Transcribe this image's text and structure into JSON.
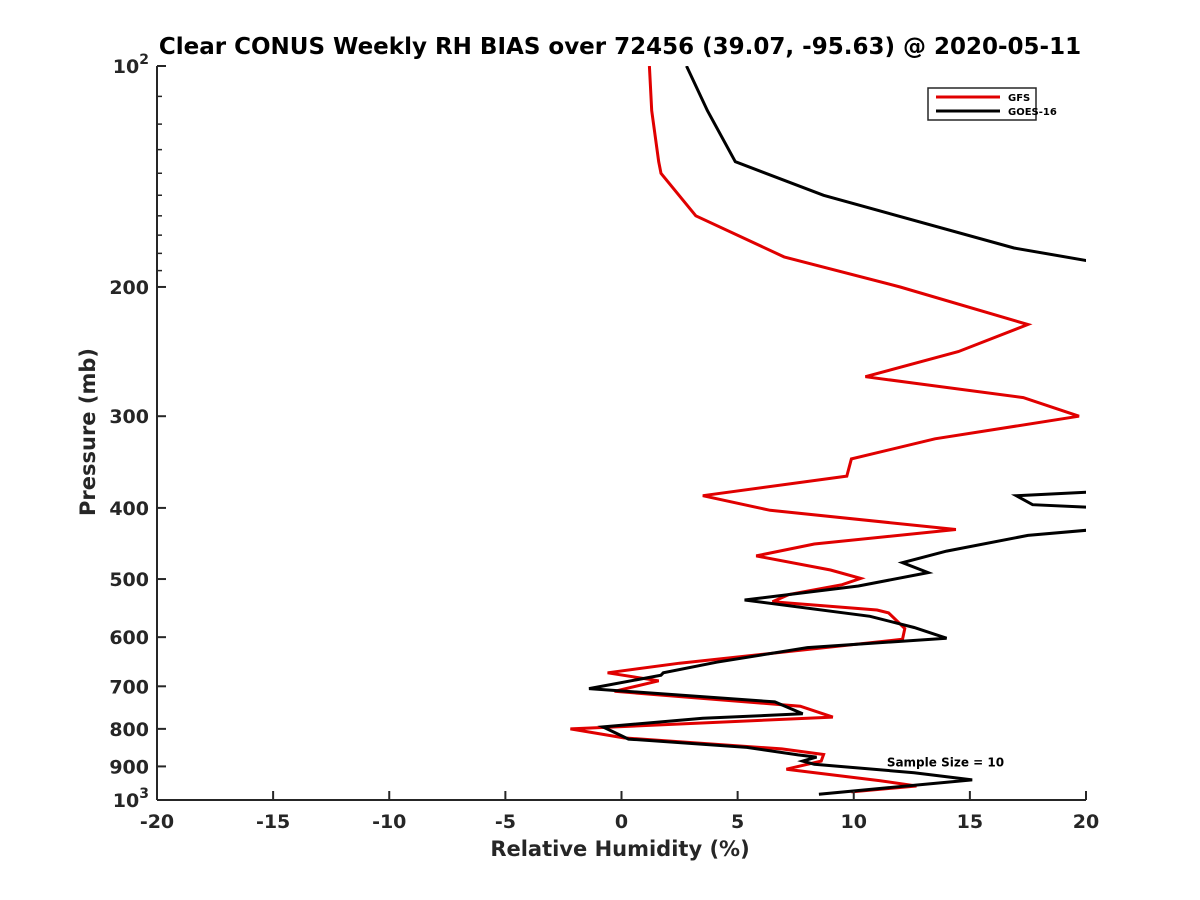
{
  "chart_data": {
    "type": "line",
    "title": "Clear CONUS Weekly RH BIAS over 72456 (39.07, -95.63) @ 2020-05-11",
    "xlabel": "Relative Humidity (%)",
    "ylabel": "Pressure (mb)",
    "xlim": [
      -20,
      20
    ],
    "ylim": [
      100,
      1000
    ],
    "yscale": "log",
    "y_reversed": true,
    "grid": false,
    "x_ticks": [
      -20,
      -15,
      -10,
      -5,
      0,
      5,
      10,
      15,
      20
    ],
    "x_tick_labels": [
      "-20",
      "-15",
      "-10",
      "-5",
      "0",
      "5",
      "10",
      "15",
      "20"
    ],
    "y_ticks": [
      100,
      200,
      300,
      400,
      500,
      600,
      700,
      800,
      900,
      1000
    ],
    "y_tick_labels": [
      {
        "base": "10",
        "exp": "2"
      },
      {
        "base": "200",
        "exp": ""
      },
      {
        "base": "300",
        "exp": ""
      },
      {
        "base": "400",
        "exp": ""
      },
      {
        "base": "500",
        "exp": ""
      },
      {
        "base": "600",
        "exp": ""
      },
      {
        "base": "700",
        "exp": ""
      },
      {
        "base": "800",
        "exp": ""
      },
      {
        "base": "900",
        "exp": ""
      },
      {
        "base": "10",
        "exp": "3"
      }
    ],
    "legend_position": "top-right",
    "series": [
      {
        "name": "GFS",
        "color": "#e00000",
        "points": [
          [
            1.2,
            100
          ],
          [
            1.3,
            115
          ],
          [
            1.6,
            135
          ],
          [
            1.7,
            140
          ],
          [
            3.2,
            160
          ],
          [
            7.0,
            182
          ],
          [
            12.0,
            200
          ],
          [
            17.5,
            225
          ],
          [
            14.5,
            245
          ],
          [
            10.5,
            265
          ],
          [
            17.3,
            283
          ],
          [
            19.7,
            300
          ],
          [
            13.5,
            322
          ],
          [
            9.9,
            343
          ],
          [
            9.7,
            362
          ],
          [
            3.5,
            385
          ],
          [
            6.4,
            403
          ],
          [
            14.4,
            428
          ],
          [
            8.3,
            448
          ],
          [
            5.8,
            465
          ],
          [
            9.0,
            486
          ],
          [
            10.3,
            499
          ],
          [
            9.5,
            509
          ],
          [
            7.2,
            525
          ],
          [
            6.5,
            537
          ],
          [
            11.0,
            551
          ],
          [
            11.5,
            556
          ],
          [
            12.2,
            584
          ],
          [
            12.1,
            604
          ],
          [
            2.5,
            651
          ],
          [
            -0.6,
            671
          ],
          [
            1.6,
            688
          ],
          [
            -0.3,
            711
          ],
          [
            7.7,
            745
          ],
          [
            9.1,
            771
          ],
          [
            -2.2,
            800
          ],
          [
            0.1,
            823
          ],
          [
            6.9,
            852
          ],
          [
            8.7,
            867
          ],
          [
            8.6,
            885
          ],
          [
            7.1,
            908
          ],
          [
            11.1,
            941
          ],
          [
            12.7,
            957
          ],
          [
            9.9,
            975
          ]
        ]
      },
      {
        "name": "GOES-16",
        "color": "#000000",
        "points": [
          [
            2.8,
            100
          ],
          [
            3.7,
            115
          ],
          [
            4.9,
            135
          ],
          [
            8.7,
            150
          ],
          [
            16.9,
            177
          ],
          [
            20.4,
            185
          ],
          null,
          [
            20.6,
            380
          ],
          [
            17.0,
            385
          ],
          [
            17.7,
            396
          ],
          [
            20.7,
            400
          ],
          null,
          [
            20.4,
            428
          ],
          [
            17.5,
            436
          ],
          [
            14.0,
            458
          ],
          [
            12.1,
            475
          ],
          [
            13.2,
            490
          ],
          [
            10.2,
            511
          ],
          [
            5.3,
            534
          ],
          [
            10.7,
            562
          ],
          [
            12.6,
            582
          ],
          [
            14.0,
            602
          ],
          [
            8.0,
            620
          ],
          [
            4.1,
            649
          ],
          [
            1.8,
            671
          ],
          [
            1.7,
            676
          ],
          [
            -1.4,
            705
          ],
          [
            6.6,
            735
          ],
          [
            7.8,
            763
          ],
          [
            3.5,
            774
          ],
          [
            -0.8,
            795
          ],
          [
            0.3,
            826
          ],
          [
            5.4,
            848
          ],
          [
            7.6,
            868
          ],
          [
            8.4,
            874
          ],
          [
            7.8,
            885
          ],
          [
            8.3,
            894
          ],
          [
            12.6,
            918
          ],
          [
            15.1,
            939
          ],
          [
            8.5,
            982
          ]
        ]
      }
    ],
    "annotations": [
      {
        "text": "Sample Size = 10",
        "x": 12.5,
        "y": 900
      }
    ]
  }
}
